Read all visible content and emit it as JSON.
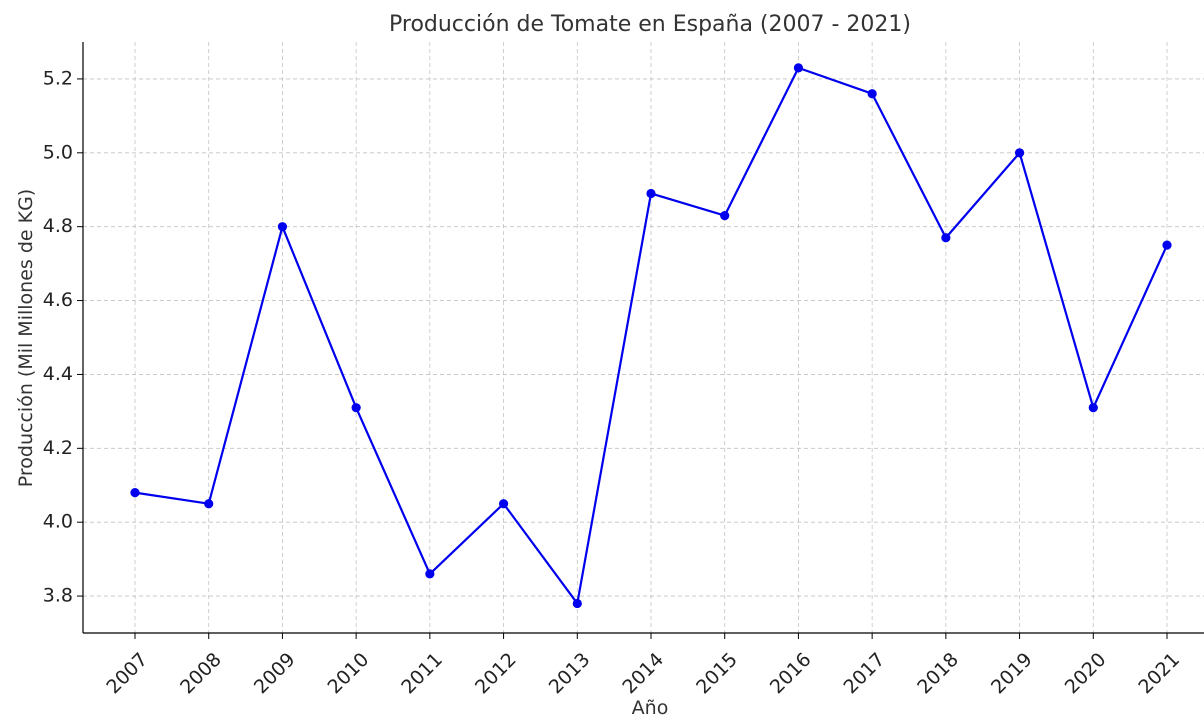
{
  "chart_data": {
    "type": "line",
    "title": "Producción de Tomate en España (2007 - 2021)",
    "xlabel": "Año",
    "ylabel": "Producción (Mil Millones de KG)",
    "categories": [
      "2007",
      "2008",
      "2009",
      "2010",
      "2011",
      "2012",
      "2013",
      "2014",
      "2015",
      "2016",
      "2017",
      "2018",
      "2019",
      "2020",
      "2021"
    ],
    "series": [
      {
        "values": [
          4.08,
          4.05,
          4.8,
          4.31,
          3.86,
          4.05,
          3.78,
          4.89,
          4.83,
          5.23,
          5.16,
          4.77,
          5.0,
          4.31,
          4.75
        ],
        "color": "#0000ee",
        "marker": "circle"
      }
    ],
    "ylim": [
      3.7,
      5.3
    ],
    "yticks": [
      "3.8",
      "4.0",
      "4.2",
      "4.4",
      "4.6",
      "4.8",
      "5.0",
      "5.2"
    ],
    "grid": true,
    "legend": "none"
  }
}
